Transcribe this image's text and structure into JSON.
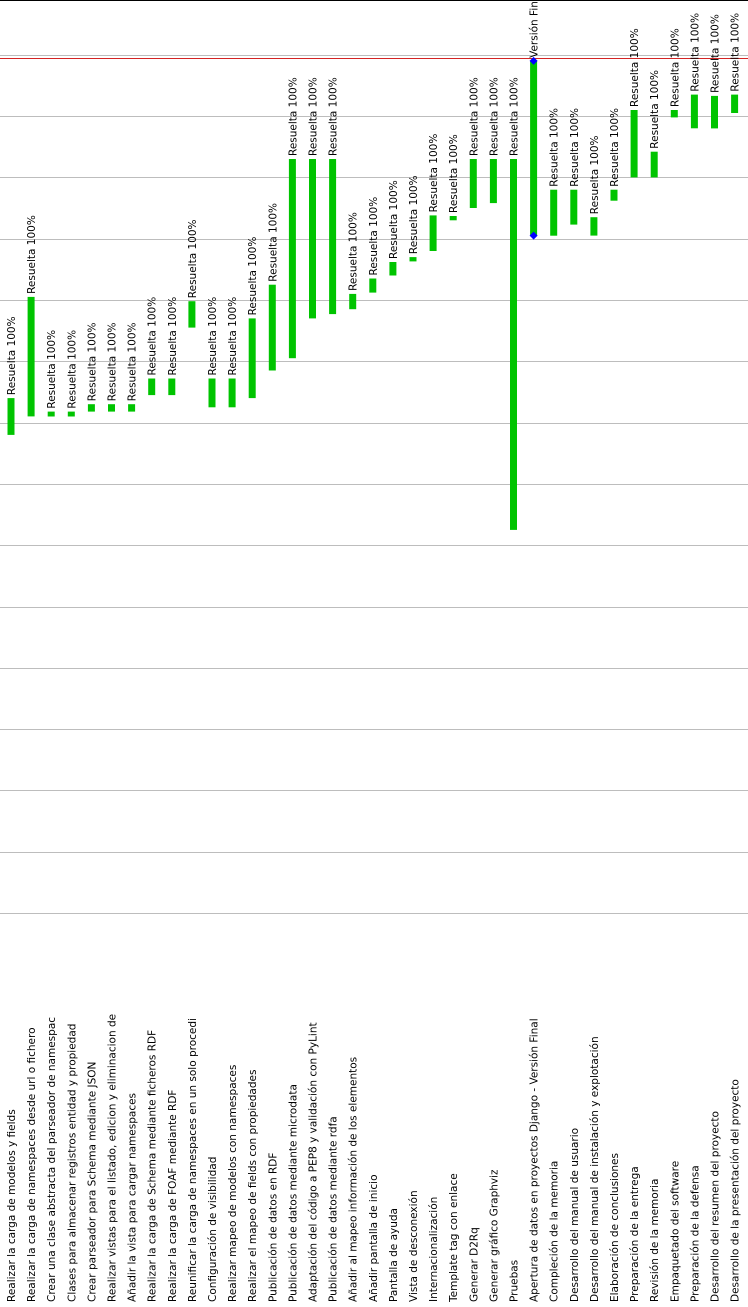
{
  "colors": {
    "bar": "#00c400",
    "milestone": "#0000ff",
    "grid": "#bdbdbd",
    "today_line": "#d42424",
    "frame": "#000000",
    "background": "#ffffff"
  },
  "chart_data": {
    "type": "gantt",
    "orientation": "rotated-90",
    "title": "",
    "bar_label_suffix": "Resuelta 100%",
    "time_axis": {
      "min": 0,
      "max": 14,
      "unit": "periods",
      "direction": "top-is-later"
    },
    "today_marker_period": 13.95,
    "tasks": [
      {
        "name": "Realizar la carga de modelos y fields",
        "start": 7.8,
        "end": 8.4,
        "label": "Resuelta 100%"
      },
      {
        "name": "Realizar la carga de namespaces desde url o fichero",
        "start": 8.1,
        "end": 10.05,
        "label": "Resuelta 100%"
      },
      {
        "name": "Crear una clase abstracta del parseador de namespac",
        "start": 8.1,
        "end": 8.18,
        "label": "Resuelta 100%"
      },
      {
        "name": "Clases para almacenar registros entidad y propiedad",
        "start": 8.1,
        "end": 8.18,
        "label": "Resuelta 100%"
      },
      {
        "name": "Crear parseador para Schema mediante JSON",
        "start": 8.18,
        "end": 8.3,
        "label": "Resuelta 100%"
      },
      {
        "name": "Realizar vistas para el listado, edicion y eliminacion de",
        "start": 8.18,
        "end": 8.3,
        "label": "Resuelta 100%"
      },
      {
        "name": "Añadir la vista para cargar namespaces",
        "start": 8.18,
        "end": 8.3,
        "label": "Resuelta 100%"
      },
      {
        "name": "Realizar la carga de Schema mediante ficheros RDF",
        "start": 8.45,
        "end": 8.72,
        "label": "Resuelta 100%"
      },
      {
        "name": "Realizar la carga de FOAF mediante RDF",
        "start": 8.45,
        "end": 8.72,
        "label": "Resuelta 100%"
      },
      {
        "name": "Reunificar la carga de namespaces en un solo procedi",
        "start": 9.55,
        "end": 9.98,
        "label": "Resuelta 100%"
      },
      {
        "name": "Configuración de visibilidad",
        "start": 8.25,
        "end": 8.72,
        "label": "Resuelta 100%"
      },
      {
        "name": "Realizar mapeo de modelos con namespaces",
        "start": 8.25,
        "end": 8.72,
        "label": "Resuelta 100%"
      },
      {
        "name": "Realizar el mapeo de fields con propiedades",
        "start": 8.4,
        "end": 9.7,
        "label": "Resuelta 100%"
      },
      {
        "name": "Publicación de datos en RDF",
        "start": 8.85,
        "end": 10.25,
        "label": "Resuelta 100%"
      },
      {
        "name": "Publicación de datos mediante microdata",
        "start": 9.05,
        "end": 12.3,
        "label": "Resuelta 100%"
      },
      {
        "name": "Adaptación del código a PEP8 y validación con PyLint",
        "start": 9.7,
        "end": 12.3,
        "label": "Resuelta 100%"
      },
      {
        "name": "Publicación de datos mediante rdfa",
        "start": 9.77,
        "end": 12.3,
        "label": "Resuelta 100%"
      },
      {
        "name": "Añadir al mapeo información de los elementos",
        "start": 9.85,
        "end": 10.1,
        "label": "Resuelta 100%"
      },
      {
        "name": "Añadir pantalla de inicio",
        "start": 10.12,
        "end": 10.35,
        "label": "Resuelta 100%"
      },
      {
        "name": "Pantalla de ayuda",
        "start": 10.4,
        "end": 10.62,
        "label": "Resuelta 100%"
      },
      {
        "name": "Vista de desconexión",
        "start": 10.63,
        "end": 10.7,
        "label": "Resuelta 100%"
      },
      {
        "name": "Internacionalización",
        "start": 10.8,
        "end": 11.38,
        "label": "Resuelta 100%"
      },
      {
        "name": "Template tag con enlace",
        "start": 11.3,
        "end": 11.37,
        "label": "Resuelta 100%"
      },
      {
        "name": "Generar D2Rq",
        "start": 11.5,
        "end": 12.3,
        "label": "Resuelta 100%"
      },
      {
        "name": "Generar gráfico Graphviz",
        "start": 11.58,
        "end": 12.3,
        "label": "Resuelta 100%"
      },
      {
        "name": "Pruebas",
        "start": 6.25,
        "end": 12.3,
        "label": "Resuelta 100%"
      },
      {
        "name": "Apertura de datos en proyectos Django - Versión Final",
        "start": 11.05,
        "end": 13.9,
        "label": "Versión Final",
        "milestones": true
      },
      {
        "name": "Compleción de la memoria",
        "start": 11.05,
        "end": 11.8,
        "label": "Resuelta 100%"
      },
      {
        "name": "Desarrollo del manual de usuario",
        "start": 11.23,
        "end": 11.8,
        "label": "Resuelta 100%"
      },
      {
        "name": "Desarrollo del manual de instalación y explotación",
        "start": 11.05,
        "end": 11.35,
        "label": "Resuelta 100%"
      },
      {
        "name": "Elaboración de conclusiones",
        "start": 11.62,
        "end": 11.8,
        "label": "Resuelta 100%"
      },
      {
        "name": "Preparación de la entrega",
        "start": 12.0,
        "end": 13.1,
        "label": "Resuelta 100%"
      },
      {
        "name": "Revisión de la memoria",
        "start": 12.0,
        "end": 12.42,
        "label": "Resuelta 100%"
      },
      {
        "name": "Empaquetado del software",
        "start": 12.98,
        "end": 13.1,
        "label": "Resuelta 100%"
      },
      {
        "name": "Preparación de la defensa",
        "start": 12.8,
        "end": 13.35,
        "label": "Resuelta 100%"
      },
      {
        "name": "Desarrollo del resumen del proyecto",
        "start": 12.8,
        "end": 13.33,
        "label": "Resuelta 100%"
      },
      {
        "name": "Desarrollo de la presentación del proyecto",
        "start": 13.05,
        "end": 13.35,
        "label": "Resuelta 100%"
      }
    ]
  }
}
